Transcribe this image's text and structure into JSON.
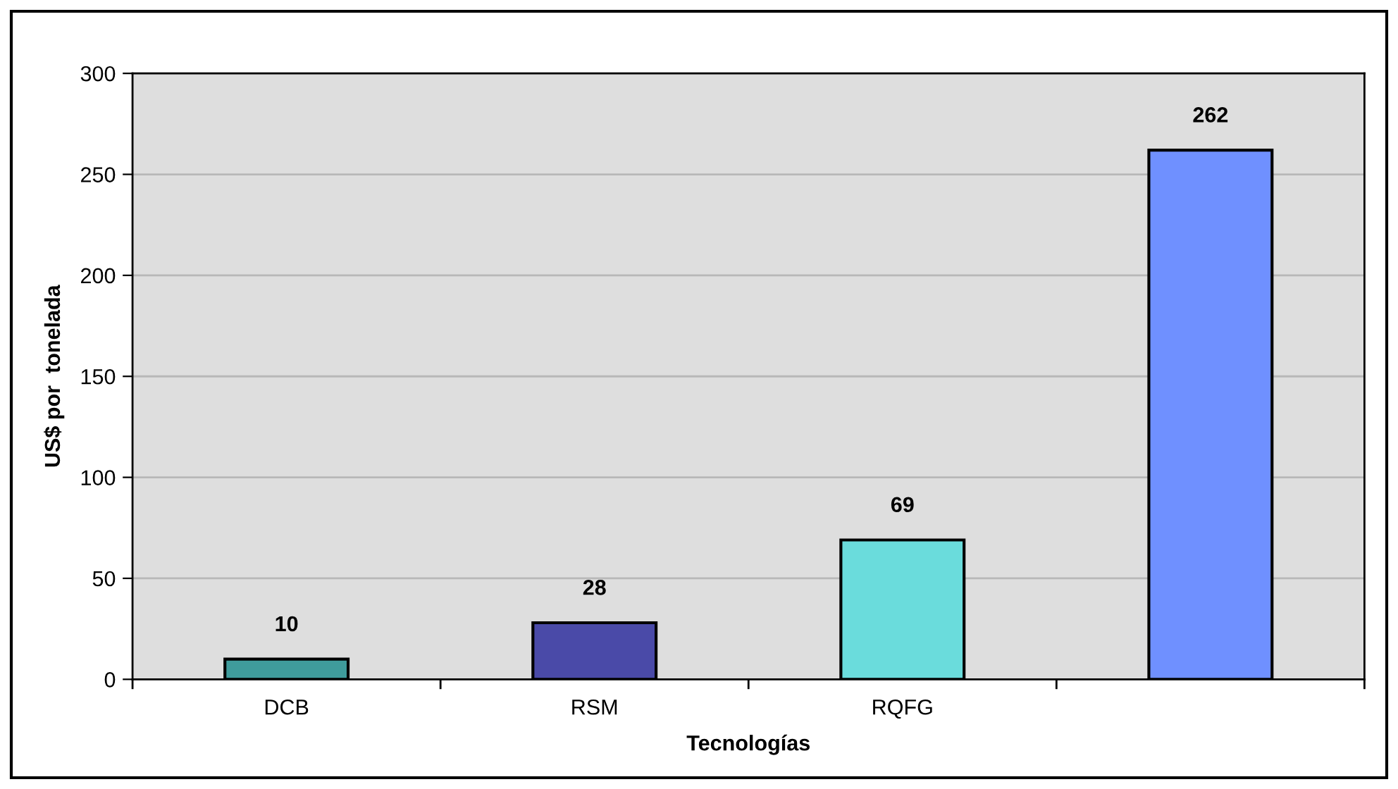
{
  "chart_data": {
    "type": "bar",
    "xlabel": "Tecnologías",
    "ylabel": "US$ por  tonelada",
    "categories": [
      "DCB",
      "RSM",
      "RQFG",
      null
    ],
    "values": [
      10,
      28,
      69,
      262
    ],
    "colors": [
      "#3f9c9c",
      "#4a4aa8",
      "#6adcdc",
      "#6f90ff"
    ],
    "ylim": [
      0,
      300
    ],
    "yticks": [
      0,
      50,
      100,
      150,
      200,
      250,
      300
    ],
    "grid": "y",
    "data_labels": true
  }
}
